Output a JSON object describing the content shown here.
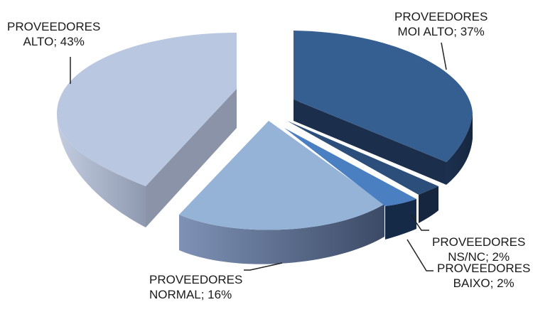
{
  "chart_data": {
    "type": "pie",
    "style": "3d-exploded",
    "legend": "none",
    "slices": [
      {
        "label_line1": "PROVEEDORES",
        "label_line2": "MOI ALTO; 37%",
        "value": 37,
        "color": "#365f91"
      },
      {
        "label_line1": "PROVEEDORES",
        "label_line2": "NS/NC; 2%",
        "value": 2,
        "color": "#2b4f7a"
      },
      {
        "label_line1": "PROVEEDORES",
        "label_line2": "BAIXO; 2%",
        "value": 2,
        "color": "#4a7fc1"
      },
      {
        "label_line1": "PROVEEDORES",
        "label_line2": "NORMAL; 16%",
        "value": 16,
        "color": "#95b3d7"
      },
      {
        "label_line1": "PROVEEDORES",
        "label_line2": "ALTO; 43%",
        "value": 43,
        "color": "#b9c7e0"
      }
    ]
  }
}
